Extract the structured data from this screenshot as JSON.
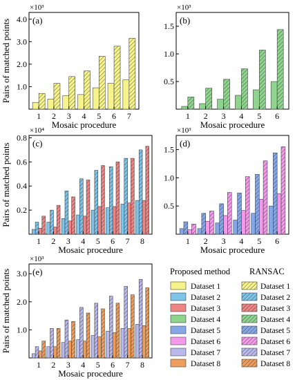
{
  "colors": {
    "Dataset 1": "#f6f38a",
    "Dataset 2": "#7ec3ea",
    "Dataset 3": "#ee8484",
    "Dataset 4": "#8ed48e",
    "Dataset 5": "#86a7e6",
    "Dataset 6": "#f39ae9",
    "Dataset 7": "#b9b9ec",
    "Dataset 8": "#ee9d5c"
  },
  "common": {
    "xlabel": "Mosaic procedure",
    "ylabel": "Pairs of matched points"
  },
  "legend": {
    "proposed_title": "Proposed method",
    "ransac_title": "RANSAC",
    "entries": [
      "Dataset 1",
      "Dataset 2",
      "Dataset 3",
      "Dataset 4",
      "Dataset 5",
      "Dataset 6",
      "Dataset 7",
      "Dataset 8"
    ]
  },
  "chart_data": [
    {
      "type": "bar",
      "panel": "(a)",
      "multiplier": "×10³",
      "xlabel": "Mosaic procedure",
      "ylabel": "Pairs of matched points",
      "categories": [
        "1",
        "2",
        "3",
        "4",
        "5",
        "6",
        "7"
      ],
      "ylim": [
        0,
        4.3
      ],
      "yticks": [
        1.0,
        2.0,
        3.0,
        4.0
      ],
      "ytick_labels": [
        "1.0",
        "2.0",
        "3.0",
        "4.0"
      ],
      "series": [
        {
          "name": "Dataset 1",
          "method": "proposed",
          "values": [
            0.3,
            0.45,
            0.6,
            0.65,
            0.95,
            1.15,
            1.3
          ]
        },
        {
          "name": "Dataset 1",
          "method": "ransac",
          "values": [
            0.7,
            1.15,
            1.45,
            1.7,
            2.35,
            2.8,
            3.15
          ]
        }
      ]
    },
    {
      "type": "bar",
      "panel": "(b)",
      "multiplier": "×10³",
      "xlabel": "Mosaic procedure",
      "ylabel": "",
      "categories": [
        "1",
        "2",
        "3",
        "4",
        "5",
        "6"
      ],
      "ylim": [
        0,
        1.75
      ],
      "yticks": [
        0.5,
        1.0,
        1.5
      ],
      "ytick_labels": [
        "0.5",
        "1.0",
        "1.5"
      ],
      "series": [
        {
          "name": "Dataset 4",
          "method": "proposed",
          "values": [
            0.05,
            0.1,
            0.18,
            0.25,
            0.35,
            0.5
          ]
        },
        {
          "name": "Dataset 4",
          "method": "ransac",
          "values": [
            0.22,
            0.38,
            0.54,
            0.73,
            1.07,
            1.44
          ]
        }
      ]
    },
    {
      "type": "bar",
      "panel": "(c)",
      "multiplier": "×10⁴",
      "xlabel": "Mosaic procedure",
      "ylabel": "Pairs of matched points",
      "categories": [
        "1",
        "2",
        "3",
        "4",
        "5",
        "6",
        "7",
        "8"
      ],
      "ylim": [
        0,
        0.82
      ],
      "yticks": [
        0.2,
        0.4,
        0.6,
        0.8
      ],
      "ytick_labels": [
        "0.2",
        "0.4",
        "0.6",
        "0.8"
      ],
      "series": [
        {
          "name": "Dataset 2",
          "method": "proposed",
          "values": [
            0.04,
            0.1,
            0.13,
            0.16,
            0.2,
            0.22,
            0.25,
            0.28
          ]
        },
        {
          "name": "Dataset 2",
          "method": "ransac",
          "values": [
            0.1,
            0.2,
            0.36,
            0.46,
            0.53,
            0.56,
            0.63,
            0.7
          ]
        },
        {
          "name": "Dataset 3",
          "method": "proposed",
          "values": [
            0.05,
            0.06,
            0.11,
            0.15,
            0.23,
            0.23,
            0.26,
            0.28
          ]
        },
        {
          "name": "Dataset 3",
          "method": "ransac",
          "values": [
            0.15,
            0.24,
            0.31,
            0.45,
            0.57,
            0.6,
            0.63,
            0.73
          ]
        }
      ]
    },
    {
      "type": "bar",
      "panel": "(d)",
      "multiplier": "×10³",
      "xlabel": "Mosaic procedure",
      "ylabel": "",
      "categories": [
        "1",
        "2",
        "3",
        "4",
        "5",
        "6"
      ],
      "ylim": [
        0,
        1.75
      ],
      "yticks": [
        0.5,
        1.0,
        1.5
      ],
      "ytick_labels": [
        "0.5",
        "1.0",
        "1.5"
      ],
      "series": [
        {
          "name": "Dataset 5",
          "method": "proposed",
          "values": [
            0.1,
            0.1,
            0.2,
            0.25,
            0.37,
            0.5
          ]
        },
        {
          "name": "Dataset 5",
          "method": "ransac",
          "values": [
            0.22,
            0.37,
            0.54,
            0.73,
            1.06,
            1.44
          ]
        },
        {
          "name": "Dataset 6",
          "method": "proposed",
          "values": [
            0.08,
            0.23,
            0.33,
            0.42,
            0.62,
            0.72
          ]
        },
        {
          "name": "Dataset 6",
          "method": "ransac",
          "values": [
            0.18,
            0.41,
            0.74,
            1.02,
            1.3,
            1.55
          ]
        }
      ]
    },
    {
      "type": "bar",
      "panel": "(e)",
      "multiplier": "×10³",
      "xlabel": "Mosaic procedure",
      "ylabel": "Pairs of matched points",
      "categories": [
        "1",
        "2",
        "3",
        "4",
        "5",
        "6",
        "7",
        "8"
      ],
      "ylim": [
        0,
        3.35
      ],
      "yticks": [
        1.0,
        2.0,
        3.0
      ],
      "ytick_labels": [
        "1.0",
        "2.0",
        "3.0"
      ],
      "series": [
        {
          "name": "Dataset 7",
          "method": "proposed",
          "values": [
            0.15,
            0.4,
            0.55,
            0.65,
            0.8,
            0.95,
            1.05,
            1.2
          ]
        },
        {
          "name": "Dataset 7",
          "method": "ransac",
          "values": [
            0.4,
            1.05,
            1.35,
            1.8,
            1.95,
            2.2,
            2.55,
            2.8
          ]
        },
        {
          "name": "Dataset 8",
          "method": "proposed",
          "values": [
            0.25,
            0.4,
            0.6,
            0.6,
            0.75,
            0.9,
            1.05,
            1.15
          ]
        },
        {
          "name": "Dataset 8",
          "method": "ransac",
          "values": [
            0.6,
            1.05,
            1.3,
            1.6,
            1.75,
            1.95,
            2.25,
            2.5
          ]
        }
      ]
    }
  ]
}
